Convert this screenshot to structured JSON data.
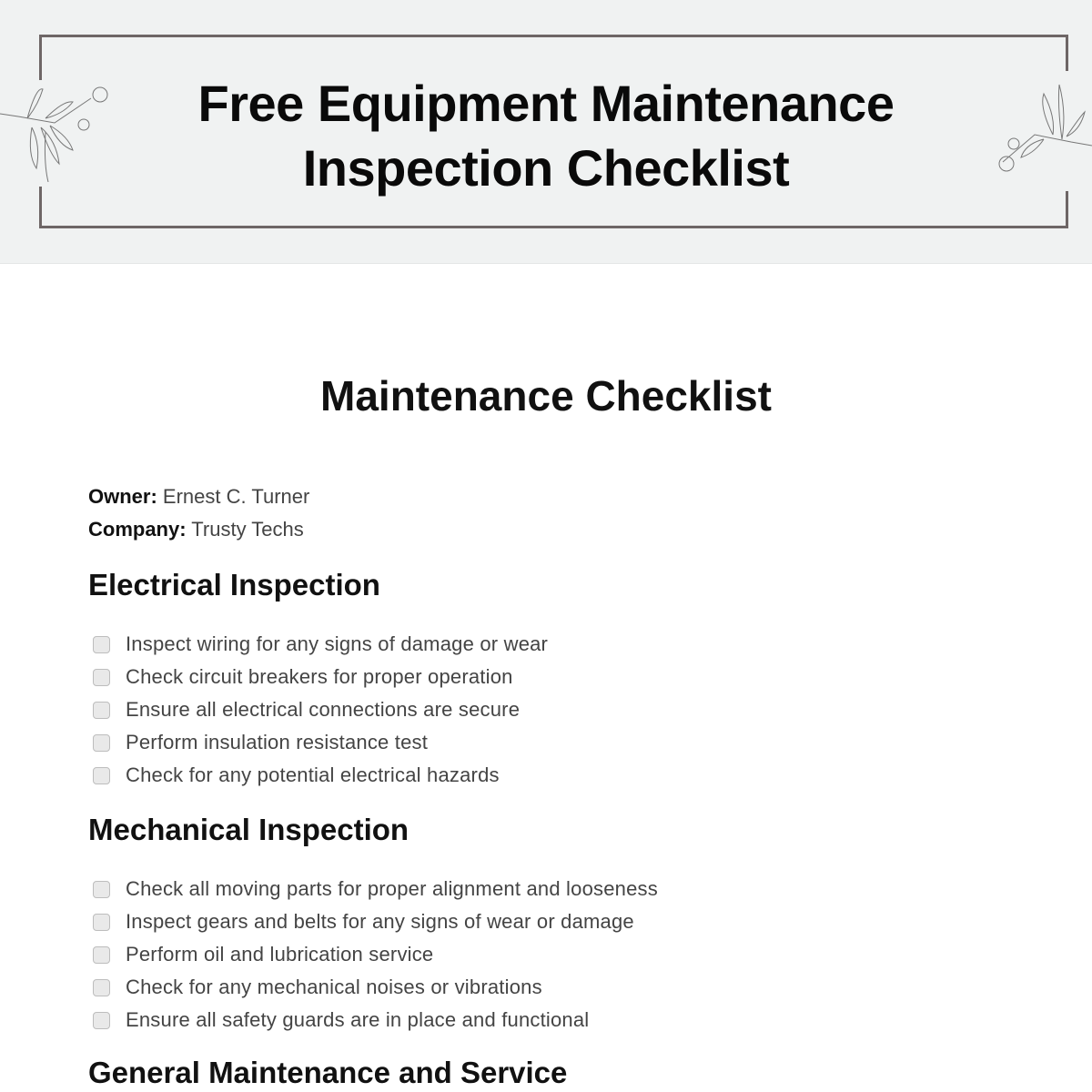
{
  "header": {
    "title_line1": "Free Equipment Maintenance",
    "title_line2": "Inspection Checklist"
  },
  "main": {
    "title": "Maintenance Checklist",
    "owner_label": "Owner:",
    "owner": "Ernest C. Turner",
    "company_label": "Company:",
    "company": "Trusty Techs",
    "sections": [
      {
        "heading": "Electrical Inspection",
        "items": [
          "Inspect wiring for any signs of damage or wear",
          "Check circuit breakers for proper operation",
          "Ensure all electrical connections are secure",
          "Perform insulation resistance test",
          "Check for any potential electrical hazards"
        ]
      },
      {
        "heading": "Mechanical Inspection",
        "items": [
          "Check all moving parts for proper alignment and looseness",
          "Inspect gears and belts for any signs of wear or damage",
          "Perform oil and lubrication service",
          "Check for any mechanical noises or vibrations",
          "Ensure all safety guards are in place and functional"
        ]
      },
      {
        "heading": "General Maintenance and Service",
        "items": []
      }
    ]
  }
}
